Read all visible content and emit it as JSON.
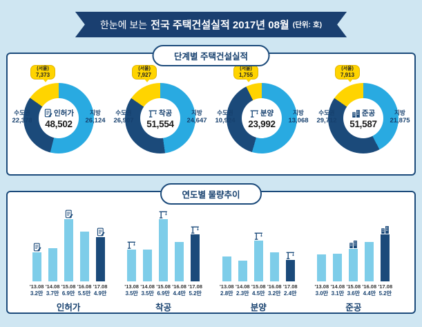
{
  "colors": {
    "background": "#cfe6f2",
    "navy": "#1b4a7a",
    "cyan": "#29aae1",
    "bar_cyan": "#7ecde9",
    "yellow": "#ffd400",
    "banner": "#1a3f70"
  },
  "banner": {
    "pre": "한눈에 보는",
    "main": "전국 주택건설실적 2017년 08월",
    "unit": "(단위: 호)"
  },
  "stage": {
    "title": "단계별 주택건설실적",
    "charts": [
      {
        "name": "인허가",
        "total": "48,502",
        "seoul_label": "(서울)",
        "seoul_value": "7,373",
        "left_label": "수도권",
        "left_value": "22,378",
        "right_label": "지방",
        "right_value": "26,124",
        "icon": "document-icon"
      },
      {
        "name": "착공",
        "total": "51,554",
        "seoul_label": "(서울)",
        "seoul_value": "7,927",
        "left_label": "수도권",
        "left_value": "26,907",
        "right_label": "지방",
        "right_value": "24,647",
        "icon": "crane-icon"
      },
      {
        "name": "분양",
        "total": "23,992",
        "seoul_label": "(서울)",
        "seoul_value": "1,755",
        "left_label": "수도권",
        "left_value": "10,924",
        "right_label": "지방",
        "right_value": "13,068",
        "icon": "crane-icon"
      },
      {
        "name": "준공",
        "total": "51,587",
        "seoul_label": "(서울)",
        "seoul_value": "7,913",
        "left_label": "수도권",
        "left_value": "29,712",
        "right_label": "지방",
        "right_value": "21,875",
        "icon": "building-icon"
      }
    ]
  },
  "trend": {
    "title": "연도별 물량추이",
    "groups": [
      {
        "name": "인허가",
        "icon": "document-icon",
        "bars": [
          {
            "year": "'13.08",
            "label": "3.2만",
            "value": 3.2,
            "icon": true,
            "dark": false
          },
          {
            "year": "'14.08",
            "label": "3.7만",
            "value": 3.7,
            "icon": false,
            "dark": false
          },
          {
            "year": "'15.08",
            "label": "6.9만",
            "value": 6.9,
            "icon": true,
            "dark": false
          },
          {
            "year": "'16.08",
            "label": "5.5만",
            "value": 5.5,
            "icon": false,
            "dark": false
          },
          {
            "year": "'17.08",
            "label": "4.9만",
            "value": 4.9,
            "icon": true,
            "dark": true
          }
        ]
      },
      {
        "name": "착공",
        "icon": "crane-icon",
        "bars": [
          {
            "year": "'13.08",
            "label": "3.5만",
            "value": 3.5,
            "icon": true,
            "dark": false
          },
          {
            "year": "'14.08",
            "label": "3.5만",
            "value": 3.5,
            "icon": false,
            "dark": false
          },
          {
            "year": "'15.08",
            "label": "6.9만",
            "value": 6.9,
            "icon": true,
            "dark": false
          },
          {
            "year": "'16.08",
            "label": "4.4만",
            "value": 4.4,
            "icon": false,
            "dark": false
          },
          {
            "year": "'17.08",
            "label": "5.2만",
            "value": 5.2,
            "icon": true,
            "dark": true
          }
        ]
      },
      {
        "name": "분양",
        "icon": "crane-icon",
        "bars": [
          {
            "year": "'13.08",
            "label": "2.8만",
            "value": 2.8,
            "icon": false,
            "dark": false
          },
          {
            "year": "'14.08",
            "label": "2.3만",
            "value": 2.3,
            "icon": false,
            "dark": false
          },
          {
            "year": "'15.08",
            "label": "4.5만",
            "value": 4.5,
            "icon": true,
            "dark": false
          },
          {
            "year": "'16.08",
            "label": "3.2만",
            "value": 3.2,
            "icon": false,
            "dark": false
          },
          {
            "year": "'17.08",
            "label": "2.4만",
            "value": 2.4,
            "icon": true,
            "dark": true
          }
        ]
      },
      {
        "name": "준공",
        "icon": "building-icon",
        "bars": [
          {
            "year": "'13.08",
            "label": "3.0만",
            "value": 3.0,
            "icon": false,
            "dark": false
          },
          {
            "year": "'14.08",
            "label": "3.1만",
            "value": 3.1,
            "icon": false,
            "dark": false
          },
          {
            "year": "'15.08",
            "label": "3.6만",
            "value": 3.6,
            "icon": true,
            "dark": false
          },
          {
            "year": "'16.08",
            "label": "4.4만",
            "value": 4.4,
            "icon": false,
            "dark": false
          },
          {
            "year": "'17.08",
            "label": "5.2만",
            "value": 5.2,
            "icon": true,
            "dark": true
          }
        ]
      }
    ]
  },
  "chart_data": [
    {
      "type": "pie",
      "title": "인허가",
      "total": 48502,
      "slices": [
        {
          "label": "수도권",
          "value": 22378
        },
        {
          "label": "지방",
          "value": 26124
        }
      ],
      "callout": {
        "label": "(서울)",
        "value": 7373
      }
    },
    {
      "type": "pie",
      "title": "착공",
      "total": 51554,
      "slices": [
        {
          "label": "수도권",
          "value": 26907
        },
        {
          "label": "지방",
          "value": 24647
        }
      ],
      "callout": {
        "label": "(서울)",
        "value": 7927
      }
    },
    {
      "type": "pie",
      "title": "분양",
      "total": 23992,
      "slices": [
        {
          "label": "수도권",
          "value": 10924
        },
        {
          "label": "지방",
          "value": 13068
        }
      ],
      "callout": {
        "label": "(서울)",
        "value": 1755
      }
    },
    {
      "type": "pie",
      "title": "준공",
      "total": 51587,
      "slices": [
        {
          "label": "수도권",
          "value": 29712
        },
        {
          "label": "지방",
          "value": 21875
        }
      ],
      "callout": {
        "label": "(서울)",
        "value": 7913
      }
    },
    {
      "type": "bar",
      "title": "인허가",
      "unit": "만",
      "categories": [
        "'13.08",
        "'14.08",
        "'15.08",
        "'16.08",
        "'17.08"
      ],
      "values": [
        3.2,
        3.7,
        6.9,
        5.5,
        4.9
      ]
    },
    {
      "type": "bar",
      "title": "착공",
      "unit": "만",
      "categories": [
        "'13.08",
        "'14.08",
        "'15.08",
        "'16.08",
        "'17.08"
      ],
      "values": [
        3.5,
        3.5,
        6.9,
        4.4,
        5.2
      ]
    },
    {
      "type": "bar",
      "title": "분양",
      "unit": "만",
      "categories": [
        "'13.08",
        "'14.08",
        "'15.08",
        "'16.08",
        "'17.08"
      ],
      "values": [
        2.8,
        2.3,
        4.5,
        3.2,
        2.4
      ]
    },
    {
      "type": "bar",
      "title": "준공",
      "unit": "만",
      "categories": [
        "'13.08",
        "'14.08",
        "'15.08",
        "'16.08",
        "'17.08"
      ],
      "values": [
        3.0,
        3.1,
        3.6,
        4.4,
        5.2
      ]
    }
  ]
}
